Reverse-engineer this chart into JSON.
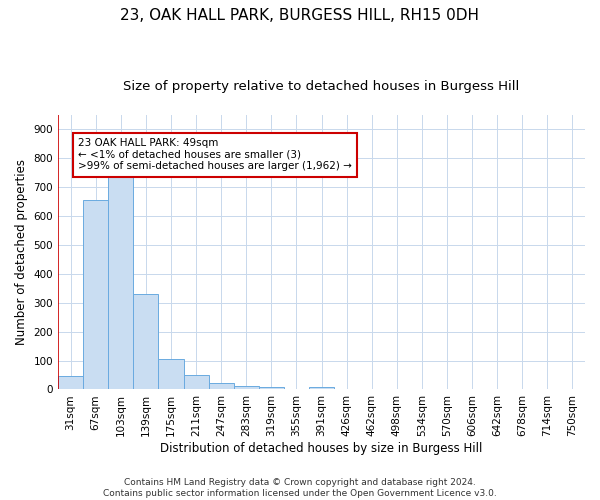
{
  "title": "23, OAK HALL PARK, BURGESS HILL, RH15 0DH",
  "subtitle": "Size of property relative to detached houses in Burgess Hill",
  "xlabel": "Distribution of detached houses by size in Burgess Hill",
  "ylabel": "Number of detached properties",
  "categories": [
    "31sqm",
    "67sqm",
    "103sqm",
    "139sqm",
    "175sqm",
    "211sqm",
    "247sqm",
    "283sqm",
    "319sqm",
    "355sqm",
    "391sqm",
    "426sqm",
    "462sqm",
    "498sqm",
    "534sqm",
    "570sqm",
    "606sqm",
    "642sqm",
    "678sqm",
    "714sqm",
    "750sqm"
  ],
  "values": [
    45,
    655,
    740,
    330,
    105,
    50,
    22,
    12,
    8,
    0,
    8,
    0,
    0,
    0,
    0,
    0,
    0,
    0,
    0,
    0,
    0
  ],
  "bar_color": "#c9ddf2",
  "bar_edge_color": "#6aaae0",
  "highlight_bar_index": 0,
  "highlight_line_color": "#cc0000",
  "annotation_line1": "23 OAK HALL PARK: 49sqm",
  "annotation_line2": "← <1% of detached houses are smaller (3)",
  "annotation_line3": ">99% of semi-detached houses are larger (1,962) →",
  "annotation_box_color": "#cc0000",
  "ylim": [
    0,
    950
  ],
  "yticks": [
    0,
    100,
    200,
    300,
    400,
    500,
    600,
    700,
    800,
    900
  ],
  "footer_line1": "Contains HM Land Registry data © Crown copyright and database right 2024.",
  "footer_line2": "Contains public sector information licensed under the Open Government Licence v3.0.",
  "background_color": "#ffffff",
  "grid_color": "#c8d8ec",
  "title_fontsize": 11,
  "subtitle_fontsize": 9.5,
  "axis_label_fontsize": 8.5,
  "tick_fontsize": 7.5,
  "annotation_fontsize": 7.5,
  "footer_fontsize": 6.5
}
